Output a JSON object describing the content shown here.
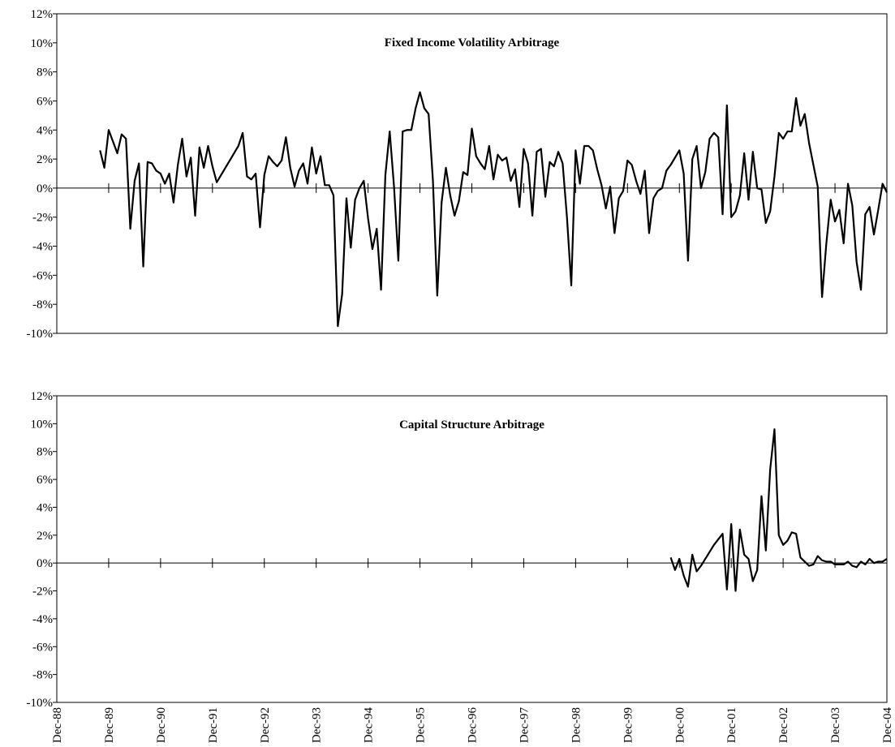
{
  "chart_data": [
    {
      "type": "line",
      "title": "Fixed Income Volatility Arbitrage",
      "xlim": [
        "Dec-88",
        "Dec-04"
      ],
      "ylim": [
        -10,
        12
      ],
      "yticks": [
        {
          "value": -10,
          "label": "-10%"
        },
        {
          "value": -8,
          "label": "-8%"
        },
        {
          "value": -6,
          "label": "-6%"
        },
        {
          "value": -4,
          "label": "-4%"
        },
        {
          "value": -2,
          "label": "-2%"
        },
        {
          "value": 0,
          "label": "0%"
        },
        {
          "value": 2,
          "label": "2%"
        },
        {
          "value": 4,
          "label": "4%"
        },
        {
          "value": 6,
          "label": "6%"
        },
        {
          "value": 8,
          "label": "8%"
        },
        {
          "value": 10,
          "label": "10%"
        },
        {
          "value": 12,
          "label": "12%"
        }
      ],
      "color": "#000000",
      "x": [
        "Oct-89",
        "Nov-89",
        "Dec-89",
        "Jan-90",
        "Feb-90",
        "Mar-90",
        "Apr-90",
        "May-90",
        "Jun-90",
        "Jul-90",
        "Aug-90",
        "Sep-90",
        "Oct-90",
        "Nov-90",
        "Dec-90",
        "Jan-91",
        "Feb-91",
        "Mar-91",
        "Apr-91",
        "May-91",
        "Jun-91",
        "Jul-91",
        "Aug-91",
        "Sep-91",
        "Oct-91",
        "Nov-91",
        "Dec-91",
        "Jan-92",
        "Feb-92",
        "Mar-92",
        "Apr-92",
        "May-92",
        "Jun-92",
        "Jul-92",
        "Aug-92",
        "Sep-92",
        "Oct-92",
        "Nov-92",
        "Dec-92",
        "Jan-93",
        "Feb-93",
        "Mar-93",
        "Apr-93",
        "May-93",
        "Jun-93",
        "Jul-93",
        "Aug-93",
        "Sep-93",
        "Oct-93",
        "Nov-93",
        "Dec-93",
        "Jan-94",
        "Feb-94",
        "Mar-94",
        "Apr-94",
        "May-94",
        "Jun-94",
        "Jul-94",
        "Aug-94",
        "Sep-94",
        "Oct-94",
        "Nov-94",
        "Dec-94",
        "Jan-95",
        "Feb-95",
        "Mar-95",
        "Apr-95",
        "May-95",
        "Jun-95",
        "Jul-95",
        "Aug-95",
        "Sep-95",
        "Oct-95",
        "Nov-95",
        "Dec-95",
        "Jan-96",
        "Feb-96",
        "Mar-96",
        "Apr-96",
        "May-96",
        "Jun-96",
        "Jul-96",
        "Aug-96",
        "Sep-96",
        "Oct-96",
        "Nov-96",
        "Dec-96",
        "Jan-97",
        "Feb-97",
        "Mar-97",
        "Apr-97",
        "May-97",
        "Jun-97",
        "Jul-97",
        "Aug-97",
        "Sep-97",
        "Oct-97",
        "Nov-97",
        "Dec-97",
        "Jan-98",
        "Feb-98",
        "Mar-98",
        "Apr-98",
        "May-98",
        "Jun-98",
        "Jul-98",
        "Aug-98",
        "Sep-98",
        "Oct-98",
        "Nov-98",
        "Dec-98",
        "Jan-99",
        "Feb-99",
        "Mar-99",
        "Apr-99",
        "May-99",
        "Jun-99",
        "Jul-99",
        "Aug-99",
        "Sep-99",
        "Oct-99",
        "Nov-99",
        "Dec-99",
        "Jan-00",
        "Feb-00",
        "Mar-00",
        "Apr-00",
        "May-00",
        "Jun-00",
        "Jul-00",
        "Aug-00",
        "Sep-00",
        "Oct-00",
        "Nov-00",
        "Dec-00",
        "Jan-01",
        "Feb-01",
        "Mar-01",
        "Apr-01",
        "May-01",
        "Jun-01",
        "Jul-01",
        "Aug-01",
        "Sep-01",
        "Oct-01",
        "Nov-01",
        "Dec-01",
        "Jan-02",
        "Feb-02",
        "Mar-02",
        "Apr-02",
        "May-02",
        "Jun-02",
        "Jul-02",
        "Aug-02",
        "Sep-02",
        "Oct-02",
        "Nov-02",
        "Dec-02",
        "Jan-03",
        "Feb-03",
        "Mar-03",
        "Apr-03",
        "May-03",
        "Jun-03",
        "Jul-03",
        "Aug-03",
        "Sep-03",
        "Oct-03",
        "Nov-03",
        "Dec-03",
        "Jan-04",
        "Feb-04",
        "Mar-04",
        "Apr-04",
        "May-04",
        "Jun-04",
        "Jul-04",
        "Aug-04",
        "Sep-04",
        "Oct-04",
        "Nov-04",
        "Dec-04"
      ],
      "values": [
        2.6,
        1.4,
        4.0,
        3.2,
        2.4,
        3.7,
        3.4,
        -2.8,
        0.5,
        1.7,
        -5.4,
        1.8,
        1.7,
        1.2,
        1.0,
        0.3,
        1.0,
        -1.0,
        1.6,
        3.4,
        0.8,
        2.1,
        -1.9,
        2.8,
        1.4,
        2.9,
        1.5,
        0.4,
        0.9,
        1.4,
        1.9,
        2.4,
        2.9,
        3.8,
        0.8,
        0.6,
        1.0,
        -2.7,
        0.9,
        2.2,
        1.8,
        1.5,
        1.9,
        3.5,
        1.4,
        0.1,
        1.2,
        1.7,
        0.3,
        2.8,
        1.0,
        2.2,
        0.2,
        0.2,
        -0.5,
        -9.5,
        -7.3,
        -0.7,
        -4.1,
        -0.8,
        0.0,
        0.5,
        -2.1,
        -4.2,
        -2.8,
        -7.0,
        0.9,
        3.9,
        0.1,
        -5.0,
        3.9,
        4.0,
        4.0,
        5.5,
        6.6,
        5.5,
        5.1,
        0.5,
        -7.4,
        -1.0,
        1.4,
        -0.5,
        -1.9,
        -0.9,
        1.1,
        0.9,
        4.1,
        2.2,
        1.7,
        1.3,
        2.9,
        0.6,
        2.3,
        1.9,
        2.1,
        0.5,
        1.3,
        -1.3,
        2.7,
        1.7,
        -1.9,
        2.5,
        2.7,
        -0.6,
        1.8,
        1.5,
        2.5,
        1.7,
        -2.0,
        -6.7,
        2.6,
        0.3,
        2.9,
        2.9,
        2.6,
        1.3,
        0.2,
        -1.4,
        0.1,
        -3.1,
        -0.7,
        -0.2,
        1.9,
        1.6,
        0.5,
        -0.4,
        1.2,
        -3.1,
        -0.7,
        -0.2,
        0.0,
        1.2,
        1.6,
        2.1,
        2.6,
        1.0,
        -5.0,
        2.0,
        2.9,
        0.0,
        1.1,
        3.4,
        3.8,
        3.5,
        -1.8,
        5.7,
        -2.0,
        -1.6,
        -0.5,
        2.4,
        -0.8,
        2.5,
        0.0,
        -0.1,
        -2.4,
        -1.6,
        0.8,
        3.8,
        3.4,
        3.9,
        3.9,
        6.2,
        4.3,
        5.1,
        3.1,
        1.6,
        0.1,
        -7.5,
        -3.8,
        -0.8,
        -2.3,
        -1.5,
        -3.8,
        0.3,
        -1.2,
        -5.1,
        -7.0,
        -1.8,
        -1.3,
        -3.2,
        -1.5,
        0.3,
        -0.3
      ]
    },
    {
      "type": "line",
      "title": "Capital Structure Arbitrage",
      "xlim": [
        "Dec-88",
        "Dec-04"
      ],
      "xticks": [
        "Dec-88",
        "Dec-89",
        "Dec-90",
        "Dec-91",
        "Dec-92",
        "Dec-93",
        "Dec-94",
        "Dec-95",
        "Dec-96",
        "Dec-97",
        "Dec-98",
        "Dec-99",
        "Dec-00",
        "Dec-01",
        "Dec-02",
        "Dec-03",
        "Dec-04"
      ],
      "ylim": [
        -10,
        12
      ],
      "yticks": [
        {
          "value": -10,
          "label": "-10%"
        },
        {
          "value": -8,
          "label": "-8%"
        },
        {
          "value": -6,
          "label": "-6%"
        },
        {
          "value": -4,
          "label": "-4%"
        },
        {
          "value": -2,
          "label": "-2%"
        },
        {
          "value": 0,
          "label": "0%"
        },
        {
          "value": 2,
          "label": "2%"
        },
        {
          "value": 4,
          "label": "4%"
        },
        {
          "value": 6,
          "label": "6%"
        },
        {
          "value": 8,
          "label": "8%"
        },
        {
          "value": 10,
          "label": "10%"
        },
        {
          "value": 12,
          "label": "12%"
        }
      ],
      "color": "#000000",
      "x": [
        "Oct-00",
        "Nov-00",
        "Dec-00",
        "Jan-01",
        "Feb-01",
        "Mar-01",
        "Apr-01",
        "May-01",
        "Jun-01",
        "Jul-01",
        "Aug-01",
        "Sep-01",
        "Oct-01",
        "Nov-01",
        "Dec-01",
        "Jan-02",
        "Feb-02",
        "Mar-02",
        "Apr-02",
        "May-02",
        "Jun-02",
        "Jul-02",
        "Aug-02",
        "Sep-02",
        "Oct-02",
        "Nov-02",
        "Dec-02",
        "Jan-03",
        "Feb-03",
        "Mar-03",
        "Apr-03",
        "May-03",
        "Jun-03",
        "Jul-03",
        "Aug-03",
        "Sep-03",
        "Oct-03",
        "Nov-03",
        "Dec-03",
        "Jan-04",
        "Feb-04",
        "Mar-04",
        "Apr-04",
        "May-04",
        "Jun-04",
        "Jul-04",
        "Aug-04",
        "Sep-04",
        "Oct-04",
        "Nov-04",
        "Dec-04"
      ],
      "values": [
        0.4,
        -0.5,
        0.3,
        -0.9,
        -1.7,
        0.6,
        -0.6,
        -0.2,
        0.3,
        0.8,
        1.3,
        1.7,
        2.1,
        -1.9,
        2.8,
        -2.0,
        2.4,
        0.6,
        0.3,
        -1.3,
        -0.5,
        4.8,
        0.9,
        6.7,
        9.6,
        2.0,
        1.3,
        1.6,
        2.2,
        2.1,
        0.4,
        0.1,
        -0.2,
        -0.1,
        0.5,
        0.2,
        0.1,
        0.1,
        -0.1,
        -0.1,
        -0.1,
        0.1,
        -0.2,
        -0.3,
        0.1,
        -0.1,
        0.3,
        0.0,
        0.1,
        0.1,
        0.3
      ]
    }
  ]
}
